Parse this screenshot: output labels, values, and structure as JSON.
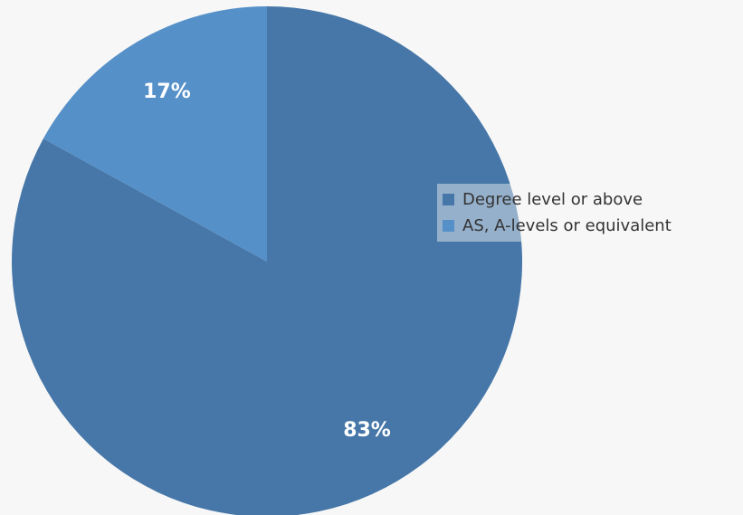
{
  "chart_data": {
    "type": "pie",
    "title": "",
    "categories": [
      "Degree level or above",
      "AS, A-levels or equivalent"
    ],
    "values": [
      83,
      17
    ],
    "value_labels": [
      "83%",
      "17%"
    ],
    "colors": [
      "#4677a8",
      "#5590c8"
    ],
    "start_angle_deg": 0,
    "direction": "clockwise",
    "legend_position": "right"
  },
  "colors": {
    "background": "#f7f7f7",
    "label_text": "#ffffff",
    "legend_text": "#333333"
  }
}
